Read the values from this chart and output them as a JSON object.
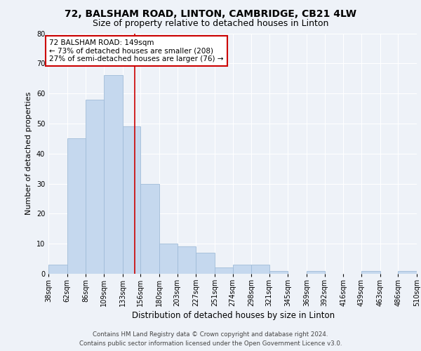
{
  "title1": "72, BALSHAM ROAD, LINTON, CAMBRIDGE, CB21 4LW",
  "title2": "Size of property relative to detached houses in Linton",
  "xlabel": "Distribution of detached houses by size in Linton",
  "ylabel": "Number of detached properties",
  "bin_edges": [
    38,
    62,
    86,
    109,
    133,
    156,
    180,
    203,
    227,
    251,
    274,
    298,
    321,
    345,
    369,
    392,
    416,
    439,
    463,
    486,
    510
  ],
  "bar_heights": [
    3,
    45,
    58,
    66,
    49,
    30,
    10,
    9,
    7,
    2,
    3,
    3,
    1,
    0,
    1,
    0,
    0,
    1,
    0,
    1
  ],
  "bar_color": "#c5d8ee",
  "bar_edge_color": "#a0bcd8",
  "property_sqm": 149,
  "vline_color": "#cc0000",
  "ylim": [
    0,
    80
  ],
  "yticks": [
    0,
    10,
    20,
    30,
    40,
    50,
    60,
    70,
    80
  ],
  "annotation_text": "72 BALSHAM ROAD: 149sqm\n← 73% of detached houses are smaller (208)\n27% of semi-detached houses are larger (76) →",
  "annotation_box_color": "#ffffff",
  "annotation_box_edge": "#cc0000",
  "footer1": "Contains HM Land Registry data © Crown copyright and database right 2024.",
  "footer2": "Contains public sector information licensed under the Open Government Licence v3.0.",
  "background_color": "#eef2f8",
  "plot_background": "#eef2f8",
  "grid_color": "#ffffff",
  "title1_fontsize": 10,
  "title2_fontsize": 9,
  "xlabel_fontsize": 8.5,
  "ylabel_fontsize": 8,
  "tick_fontsize": 7,
  "annotation_fontsize": 7.5
}
